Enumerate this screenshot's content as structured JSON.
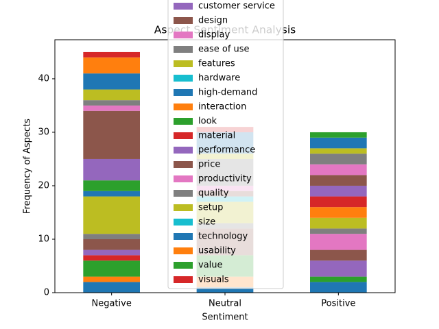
{
  "chart_data": {
    "type": "stacked_bar",
    "title": "Aspect Sentiment Analysis",
    "x_label": "Sentiment",
    "y_label": "Frequency of Aspects",
    "categories": [
      "Negative",
      "Neutral",
      "Positive"
    ],
    "ylim": [
      0,
      47.3
    ],
    "yticks": [
      0,
      10,
      20,
      30,
      40
    ],
    "series": [
      {
        "color": "#1f77b4",
        "values": [
          2,
          1,
          2
        ]
      },
      {
        "color": "#ff7f0e",
        "values": [
          1,
          2,
          0
        ]
      },
      {
        "color": "#2ca02c",
        "values": [
          3,
          4,
          1
        ]
      },
      {
        "color": "#d62728",
        "values": [
          1,
          0,
          0
        ]
      },
      {
        "name": "customer service",
        "color": "#9467bd",
        "values": [
          1,
          0,
          3
        ]
      },
      {
        "name": "design",
        "color": "#8c564b",
        "values": [
          2,
          5,
          2
        ]
      },
      {
        "name": "display",
        "color": "#e377c2",
        "values": [
          0,
          0,
          3
        ]
      },
      {
        "name": "ease of use",
        "color": "#7f7f7f",
        "values": [
          1,
          1,
          1
        ]
      },
      {
        "name": "features",
        "color": "#bcbd22",
        "values": [
          7,
          4,
          2
        ]
      },
      {
        "name": "hardware",
        "color": "#17becf",
        "values": [
          0,
          1,
          0
        ]
      },
      {
        "name": "high-demand",
        "color": "#1f77b4",
        "values": [
          1,
          0,
          0
        ]
      },
      {
        "name": "interaction",
        "color": "#ff7f0e",
        "values": [
          0,
          0,
          2
        ]
      },
      {
        "name": "look",
        "color": "#2ca02c",
        "values": [
          2,
          0,
          0
        ]
      },
      {
        "name": "material",
        "color": "#d62728",
        "values": [
          0,
          0,
          2
        ]
      },
      {
        "name": "performance",
        "color": "#9467bd",
        "values": [
          4,
          0,
          2
        ]
      },
      {
        "name": "price",
        "color": "#8c564b",
        "values": [
          9,
          1,
          2
        ]
      },
      {
        "name": "productivity",
        "color": "#e377c2",
        "values": [
          1,
          1,
          2
        ]
      },
      {
        "name": "quality",
        "color": "#7f7f7f",
        "values": [
          1,
          5,
          2
        ]
      },
      {
        "name": "setup",
        "color": "#bcbd22",
        "values": [
          2,
          1,
          1
        ]
      },
      {
        "name": "size",
        "color": "#17becf",
        "values": [
          0,
          0,
          0
        ]
      },
      {
        "name": "technology",
        "color": "#1f77b4",
        "values": [
          3,
          4,
          2
        ]
      },
      {
        "name": "usability",
        "color": "#ff7f0e",
        "values": [
          3,
          0,
          0
        ]
      },
      {
        "name": "value",
        "color": "#2ca02c",
        "values": [
          0,
          0,
          1
        ]
      },
      {
        "name": "visuals",
        "color": "#d62728",
        "values": [
          1,
          1,
          0
        ]
      }
    ]
  }
}
